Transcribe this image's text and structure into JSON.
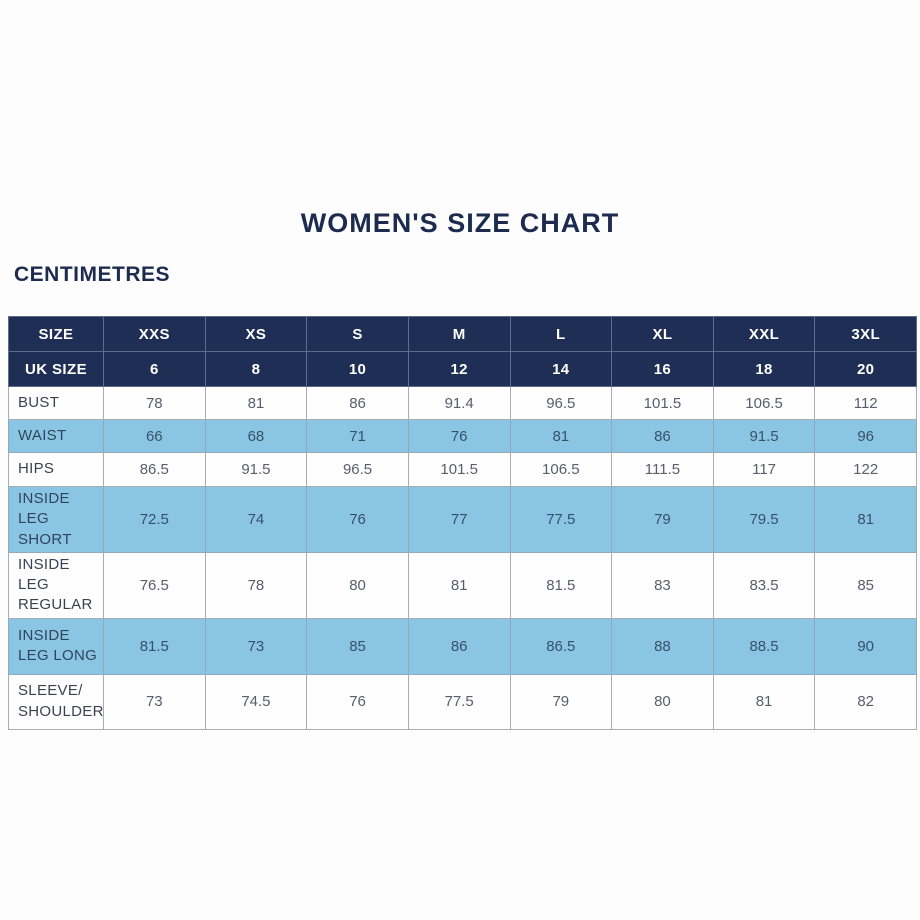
{
  "page": {
    "title": "WOMEN'S SIZE CHART",
    "unit_label": "CENTIMETRES"
  },
  "colors": {
    "header_bg": "#1f2e55",
    "header_text": "#ffffff",
    "highlight_row_bg": "#8ac5e4",
    "title_text": "#1c2b4e",
    "label_text": "#3a4252",
    "value_text": "#575f6a",
    "cell_border": "#a6adb6"
  },
  "chart_data": {
    "type": "table",
    "title": "WOMEN'S SIZE CHART",
    "unit": "CENTIMETRES",
    "header": {
      "size_label": "SIZE",
      "uk_label": "UK SIZE",
      "sizes": [
        "XXS",
        "XS",
        "S",
        "M",
        "L",
        "XL",
        "XXL",
        "3XL"
      ],
      "uk_sizes": [
        "6",
        "8",
        "10",
        "12",
        "14",
        "16",
        "18",
        "20"
      ]
    },
    "rows": [
      {
        "label": "BUST",
        "highlight": false,
        "values": [
          "78",
          "81",
          "86",
          "91.4",
          "96.5",
          "101.5",
          "106.5",
          "112"
        ]
      },
      {
        "label": "WAIST",
        "highlight": true,
        "values": [
          "66",
          "68",
          "71",
          "76",
          "81",
          "86",
          "91.5",
          "96"
        ]
      },
      {
        "label": "HIPS",
        "highlight": false,
        "values": [
          "86.5",
          "91.5",
          "96.5",
          "101.5",
          "106.5",
          "111.5",
          "117",
          "122"
        ]
      },
      {
        "label": "INSIDE LEG SHORT",
        "highlight": true,
        "values": [
          "72.5",
          "74",
          "76",
          "77",
          "77.5",
          "79",
          "79.5",
          "81"
        ]
      },
      {
        "label": "INSIDE LEG REGULAR",
        "highlight": false,
        "values": [
          "76.5",
          "78",
          "80",
          "81",
          "81.5",
          "83",
          "83.5",
          "85"
        ]
      },
      {
        "label": "INSIDE LEG LONG",
        "highlight": true,
        "values": [
          "81.5",
          "73",
          "85",
          "86",
          "86.5",
          "88",
          "88.5",
          "90"
        ]
      },
      {
        "label": "SLEEVE/ SHOULDER",
        "highlight": false,
        "values": [
          "73",
          "74.5",
          "76",
          "77.5",
          "79",
          "80",
          "81",
          "82"
        ]
      }
    ]
  }
}
